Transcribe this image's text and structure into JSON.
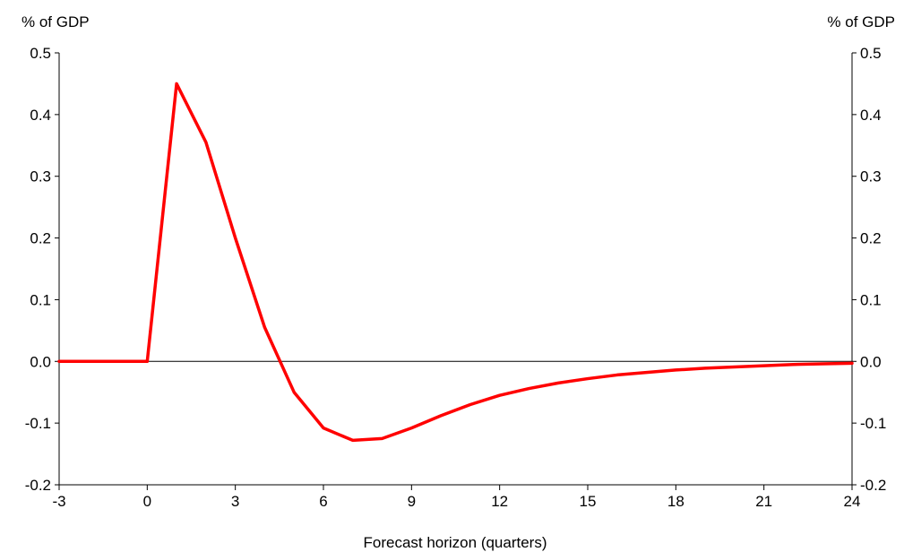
{
  "chart_data": {
    "type": "line",
    "title": "",
    "xlabel": "Forecast horizon (quarters)",
    "ylabel_left": "% of GDP",
    "ylabel_right": "% of GDP",
    "xlim": [
      -3,
      24
    ],
    "ylim": [
      -0.2,
      0.5
    ],
    "x_ticks": [
      -3,
      0,
      3,
      6,
      9,
      12,
      15,
      18,
      21,
      24
    ],
    "y_ticks": [
      -0.2,
      -0.1,
      0.0,
      0.1,
      0.2,
      0.3,
      0.4,
      0.5
    ],
    "grid": false,
    "zero_line": true,
    "series": [
      {
        "color": "#ff0000",
        "x": [
          -3,
          -2,
          -1,
          0,
          1,
          2,
          3,
          4,
          5,
          6,
          7,
          8,
          9,
          10,
          11,
          12,
          13,
          14,
          15,
          16,
          17,
          18,
          19,
          20,
          21,
          22,
          23,
          24
        ],
        "values": [
          0.0,
          0.0,
          0.0,
          0.0,
          0.45,
          0.355,
          0.2,
          0.055,
          -0.05,
          -0.108,
          -0.128,
          -0.125,
          -0.108,
          -0.088,
          -0.07,
          -0.055,
          -0.044,
          -0.035,
          -0.028,
          -0.022,
          -0.018,
          -0.014,
          -0.011,
          -0.009,
          -0.007,
          -0.005,
          -0.004,
          -0.003
        ]
      }
    ]
  }
}
